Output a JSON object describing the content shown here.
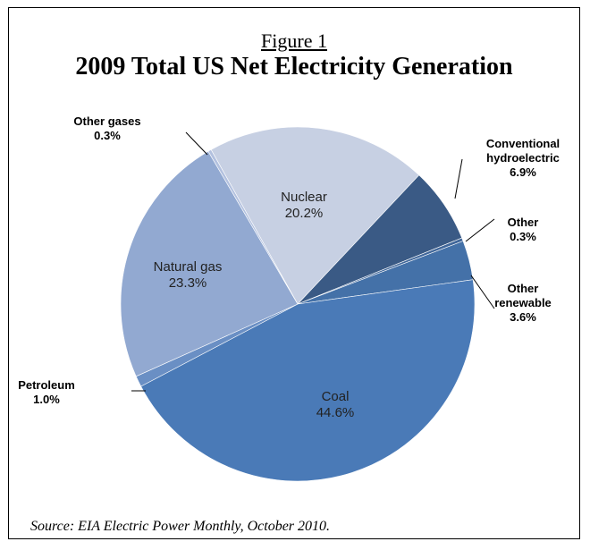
{
  "figure_label": "Figure 1",
  "title": "2009 Total US Net Electricity Generation",
  "source": "Source:  EIA Electric Power Monthly, October 2010.",
  "chart_data": {
    "type": "pie",
    "title": "2009 Total US Net Electricity Generation",
    "slices": [
      {
        "label": "Nuclear",
        "value": 20.2,
        "display": "20.2%",
        "color": "#c7d0e3",
        "label_mode": "inside"
      },
      {
        "label": "Conventional hydroelectric",
        "value": 6.9,
        "display": "6.9%",
        "color": "#3a5a85",
        "label_mode": "outside"
      },
      {
        "label": "Other",
        "value": 0.3,
        "display": "0.3%",
        "color": "#41679a",
        "label_mode": "outside"
      },
      {
        "label": "Other renewable",
        "value": 3.6,
        "display": "3.6%",
        "color": "#4471a8",
        "label_mode": "outside"
      },
      {
        "label": "Coal",
        "value": 44.6,
        "display": "44.6%",
        "color": "#4a7ab7",
        "label_mode": "inside"
      },
      {
        "label": "Petroleum",
        "value": 1.0,
        "display": "1.0%",
        "color": "#6a8fc4",
        "label_mode": "outside"
      },
      {
        "label": "Natural gas",
        "value": 23.3,
        "display": "23.3%",
        "color": "#92a9d1",
        "label_mode": "inside"
      },
      {
        "label": "Other gases",
        "value": 0.3,
        "display": "0.3%",
        "color": "#b3c1df",
        "label_mode": "outside"
      }
    ]
  }
}
